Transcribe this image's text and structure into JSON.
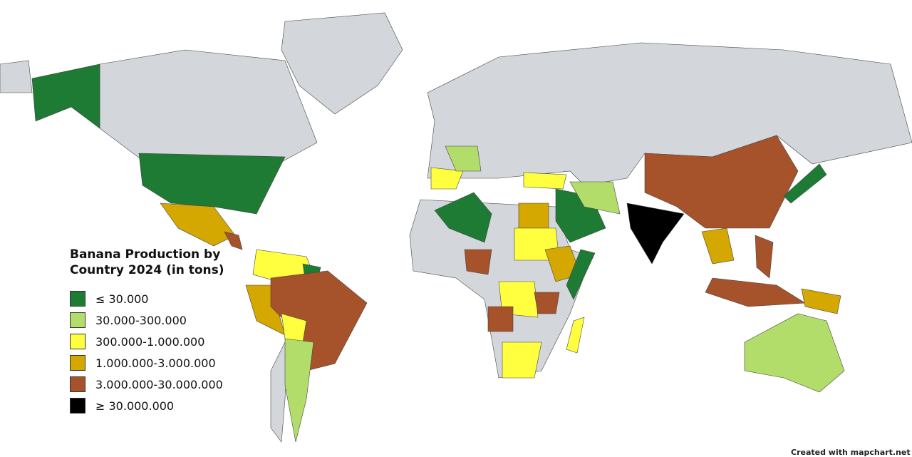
{
  "legend": {
    "title": "Banana Production by Country 2024 (in tons)",
    "items": [
      {
        "label": "≤ 30.000",
        "color": "#1e7b34"
      },
      {
        "label": "30.000-300.000",
        "color": "#b3dd6b"
      },
      {
        "label": "300.000-1.000.000",
        "color": "#ffff40"
      },
      {
        "label": "1.000.000-3.000.000",
        "color": "#d4a800"
      },
      {
        "label": "3.000.000-30.000.000",
        "color": "#a6522a"
      },
      {
        "label": "≥ 30.000.000",
        "color": "#000000"
      }
    ]
  },
  "credit": "Created with mapchart.net"
}
